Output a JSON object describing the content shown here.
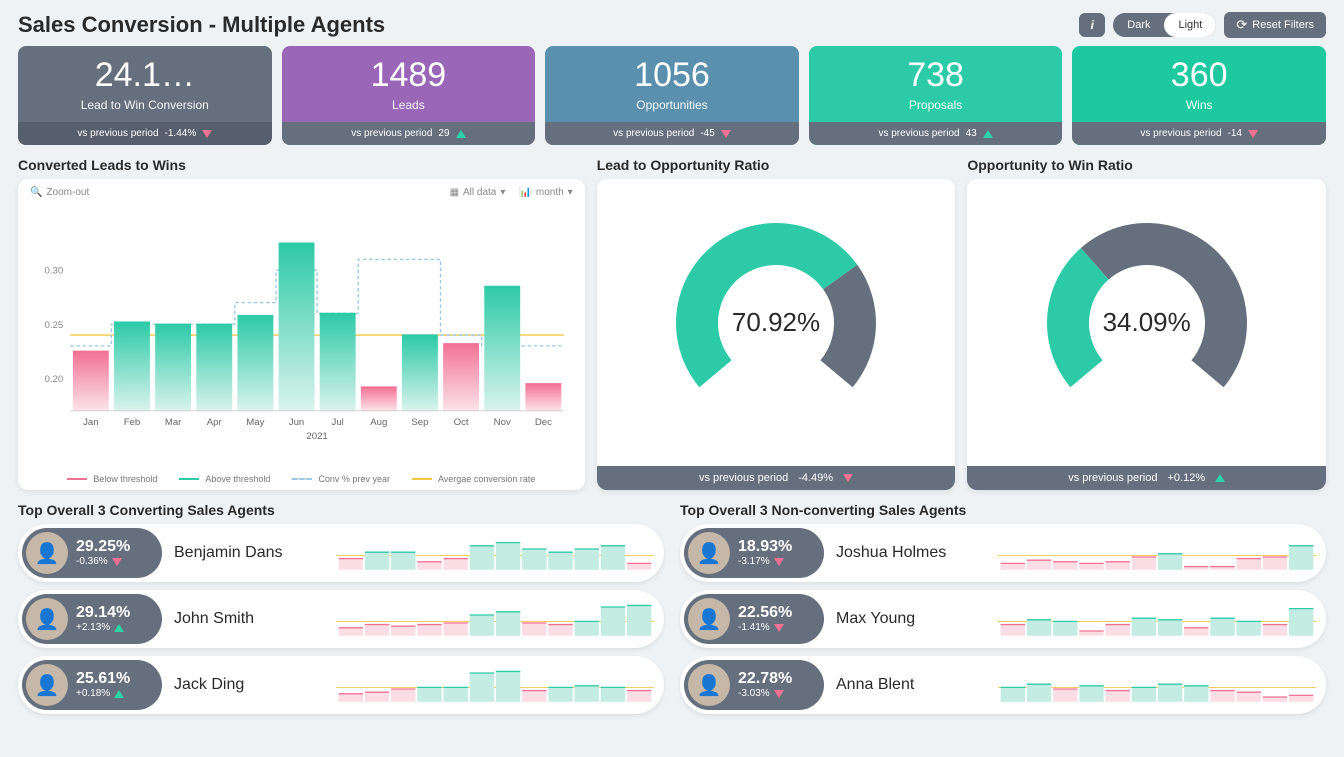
{
  "title": "Sales Conversion - Multiple Agents",
  "controls": {
    "dark": "Dark",
    "light": "Light",
    "reset": "Reset Filters",
    "info_icon": "i"
  },
  "colors": {
    "gray": "#656f7d",
    "purple": "#9966b8",
    "blue": "#5a8fad",
    "teal": "#2dcaa7",
    "green": "#1fc9a0",
    "pink": "#f27294",
    "yellow": "#f2c744",
    "bar_teal": "#6dd1bb",
    "bar_pink": "#f4a5b8"
  },
  "kpis": [
    {
      "value": "24.1…",
      "label": "Lead to Win Conversion",
      "prev": "vs previous period",
      "delta": "-1.44%",
      "dir": "down",
      "bg": "#656f7d",
      "foot": "#575f6c"
    },
    {
      "value": "1489",
      "label": "Leads",
      "prev": "vs previous period",
      "delta": "29",
      "dir": "up",
      "bg": "#9966b8",
      "foot": "#656f7d",
      "notch": "#9966b8"
    },
    {
      "value": "1056",
      "label": "Opportunities",
      "prev": "vs previous period",
      "delta": "-45",
      "dir": "down",
      "bg": "#5a8fad",
      "foot": "#656f7d",
      "notch": "#5a8fad"
    },
    {
      "value": "738",
      "label": "Proposals",
      "prev": "vs previous period",
      "delta": "43",
      "dir": "up",
      "bg": "#2dcaa7",
      "foot": "#656f7d",
      "notch": "#2dcaa7"
    },
    {
      "value": "360",
      "label": "Wins",
      "prev": "vs previous period",
      "delta": "-14",
      "dir": "down",
      "bg": "#1fc9a0",
      "foot": "#656f7d"
    }
  ],
  "converted_chart": {
    "title": "Converted Leads to Wins",
    "zoom_out": "Zoom-out",
    "range_sel": "All data",
    "period_sel": "month",
    "y_ticks": [
      "0.30",
      "0.25",
      "0.20"
    ],
    "y_tick_vals": [
      0.3,
      0.25,
      0.2
    ],
    "ylim": [
      0.17,
      0.34
    ],
    "year": "2021",
    "months": [
      "Jan",
      "Feb",
      "Mar",
      "Apr",
      "May",
      "Jun",
      "Jul",
      "Aug",
      "Sep",
      "Oct",
      "Nov",
      "Dec"
    ],
    "bars": [
      0.225,
      0.252,
      0.25,
      0.25,
      0.258,
      0.325,
      0.26,
      0.192,
      0.24,
      0.232,
      0.285,
      0.195
    ],
    "threshold": 0.24,
    "prev_year": [
      0.23,
      0.25,
      0.25,
      0.25,
      0.27,
      0.3,
      0.26,
      0.31,
      0.31,
      0.24,
      0.23,
      0.23
    ],
    "legend": {
      "below": "Below threshold",
      "above": "Above threshold",
      "prev": "Conv % prev year",
      "avg": "Avergae conversion rate"
    }
  },
  "lead_opp": {
    "title": "Lead to Opportunity Ratio",
    "value": "70.92%",
    "pct": 70.92,
    "foot_prev": "vs previous period",
    "delta": "-4.49%",
    "dir": "down"
  },
  "opp_win": {
    "title": "Opportunity to Win Ratio",
    "value": "34.09%",
    "pct": 34.09,
    "foot_prev": "vs previous period",
    "delta": "+0.12%",
    "dir": "up"
  },
  "top_converting": {
    "title": "Top Overall 3 Converting Sales Agents",
    "agents": [
      {
        "name": "Benjamin Dans",
        "pct": "29.25%",
        "delta": "-0.36%",
        "dir": "down",
        "spark": [
          0.22,
          0.26,
          0.26,
          0.2,
          0.22,
          0.3,
          0.32,
          0.28,
          0.26,
          0.28,
          0.3,
          0.19
        ]
      },
      {
        "name": "John Smith",
        "pct": "29.14%",
        "delta": "+2.13%",
        "dir": "up",
        "spark": [
          0.2,
          0.22,
          0.21,
          0.22,
          0.23,
          0.28,
          0.3,
          0.23,
          0.22,
          0.24,
          0.33,
          0.34
        ]
      },
      {
        "name": "Jack Ding",
        "pct": "25.61%",
        "delta": "+0.18%",
        "dir": "up",
        "spark": [
          0.2,
          0.21,
          0.23,
          0.24,
          0.24,
          0.33,
          0.34,
          0.22,
          0.24,
          0.25,
          0.24,
          0.22
        ]
      }
    ]
  },
  "non_converting": {
    "title": "Top Overall 3 Non-converting Sales Agents",
    "agents": [
      {
        "name": "Joshua Holmes",
        "pct": "18.93%",
        "delta": "-3.17%",
        "dir": "down",
        "spark": [
          0.19,
          0.21,
          0.2,
          0.19,
          0.2,
          0.23,
          0.25,
          0.17,
          0.17,
          0.22,
          0.23,
          0.3
        ]
      },
      {
        "name": "Max Young",
        "pct": "22.56%",
        "delta": "-1.41%",
        "dir": "down",
        "spark": [
          0.22,
          0.25,
          0.24,
          0.18,
          0.22,
          0.26,
          0.25,
          0.2,
          0.26,
          0.24,
          0.22,
          0.32
        ]
      },
      {
        "name": "Anna Blent",
        "pct": "22.78%",
        "delta": "-3.03%",
        "dir": "down",
        "spark": [
          0.24,
          0.26,
          0.23,
          0.25,
          0.22,
          0.24,
          0.26,
          0.25,
          0.22,
          0.21,
          0.18,
          0.19
        ]
      }
    ]
  }
}
